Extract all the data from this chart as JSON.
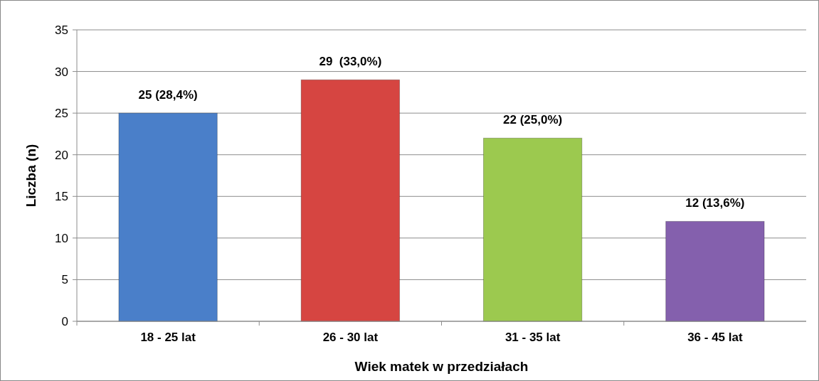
{
  "chart_data": {
    "type": "bar",
    "xlabel": "Wiek matek w przedziałach",
    "ylabel": "Liczba (n)",
    "categories": [
      "18 - 25 lat",
      "26 - 30 lat",
      "31 - 35 lat",
      "36 - 45 lat"
    ],
    "values": [
      25,
      29,
      22,
      12
    ],
    "colors": [
      "#4a7fc9",
      "#d64541",
      "#9cc94f",
      "#8460ad"
    ],
    "value_labels": [
      "25 (28,4%)",
      "29  (33,0%)",
      "22 (25,0%)",
      "12 (13,6%)"
    ],
    "ylim": [
      0,
      35
    ],
    "yticks": [
      0,
      5,
      10,
      15,
      20,
      25,
      30,
      35
    ],
    "grid": "y"
  }
}
